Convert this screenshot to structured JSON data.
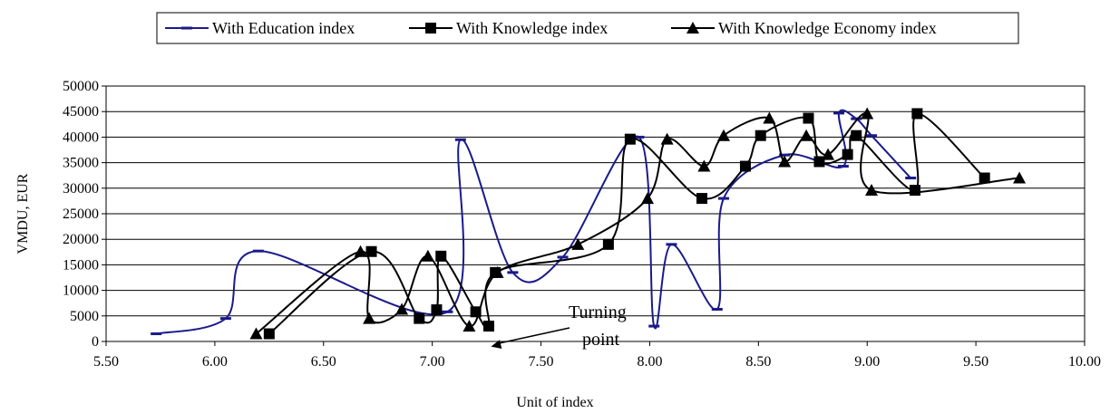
{
  "chart_data": {
    "type": "line",
    "xlabel": "Unit of index",
    "ylabel": "VMDU, EUR",
    "xlim": [
      5.5,
      10.0
    ],
    "ylim": [
      0,
      50000
    ],
    "x_ticks": [
      "5.50",
      "6.00",
      "6.50",
      "7.00",
      "7.50",
      "8.00",
      "8.50",
      "9.00",
      "9.50",
      "10.00"
    ],
    "y_ticks": [
      "0",
      "5000",
      "10000",
      "15000",
      "20000",
      "25000",
      "30000",
      "35000",
      "40000",
      "45000",
      "50000"
    ],
    "grid": "horizontal",
    "legend_position": "top",
    "series": [
      {
        "name": "With Education index",
        "marker": "dash",
        "color": "#1a1a8c",
        "points": [
          [
            5.73,
            1500
          ],
          [
            6.05,
            4500
          ],
          [
            6.2,
            17700
          ],
          [
            7.07,
            5800
          ],
          [
            7.13,
            39500
          ],
          [
            7.37,
            13500
          ],
          [
            7.6,
            16500
          ],
          [
            7.95,
            40000
          ],
          [
            8.02,
            3000
          ],
          [
            8.1,
            19000
          ],
          [
            8.31,
            6300
          ],
          [
            8.34,
            28000
          ],
          [
            8.62,
            36500
          ],
          [
            8.89,
            34300
          ],
          [
            8.87,
            44700
          ],
          [
            8.95,
            43600
          ],
          [
            9.02,
            40300
          ],
          [
            9.2,
            32000
          ]
        ]
      },
      {
        "name": "With Knowledge index",
        "marker": "square",
        "color": "#000000",
        "points": [
          [
            6.25,
            1500
          ],
          [
            6.72,
            17600
          ],
          [
            6.94,
            4500
          ],
          [
            7.02,
            6200
          ],
          [
            7.04,
            16700
          ],
          [
            7.2,
            5800
          ],
          [
            7.26,
            3000
          ],
          [
            7.29,
            13500
          ],
          [
            7.81,
            19000
          ],
          [
            7.91,
            39600
          ],
          [
            8.24,
            28000
          ],
          [
            8.44,
            34300
          ],
          [
            8.51,
            40300
          ],
          [
            8.73,
            43700
          ],
          [
            8.78,
            35200
          ],
          [
            8.91,
            36600
          ],
          [
            8.95,
            40300
          ],
          [
            9.22,
            29600
          ],
          [
            9.23,
            44600
          ],
          [
            9.54,
            32000
          ]
        ]
      },
      {
        "name": "With Knowledge Economy index",
        "marker": "triangle",
        "color": "#000000",
        "points": [
          [
            6.19,
            1500
          ],
          [
            6.67,
            17600
          ],
          [
            6.71,
            4500
          ],
          [
            6.86,
            6300
          ],
          [
            6.98,
            16700
          ],
          [
            7.17,
            3000
          ],
          [
            7.3,
            13500
          ],
          [
            7.67,
            19000
          ],
          [
            7.99,
            28000
          ],
          [
            8.08,
            39600
          ],
          [
            8.25,
            34300
          ],
          [
            8.34,
            40300
          ],
          [
            8.55,
            43700
          ],
          [
            8.62,
            35200
          ],
          [
            8.72,
            40300
          ],
          [
            8.82,
            36600
          ],
          [
            9.0,
            44600
          ],
          [
            9.02,
            29600
          ],
          [
            9.7,
            32000
          ]
        ]
      }
    ],
    "annotations": [
      {
        "text_lines": [
          "Turning",
          "point"
        ],
        "arrow_to": [
          7.27,
          -1000
        ]
      }
    ]
  }
}
